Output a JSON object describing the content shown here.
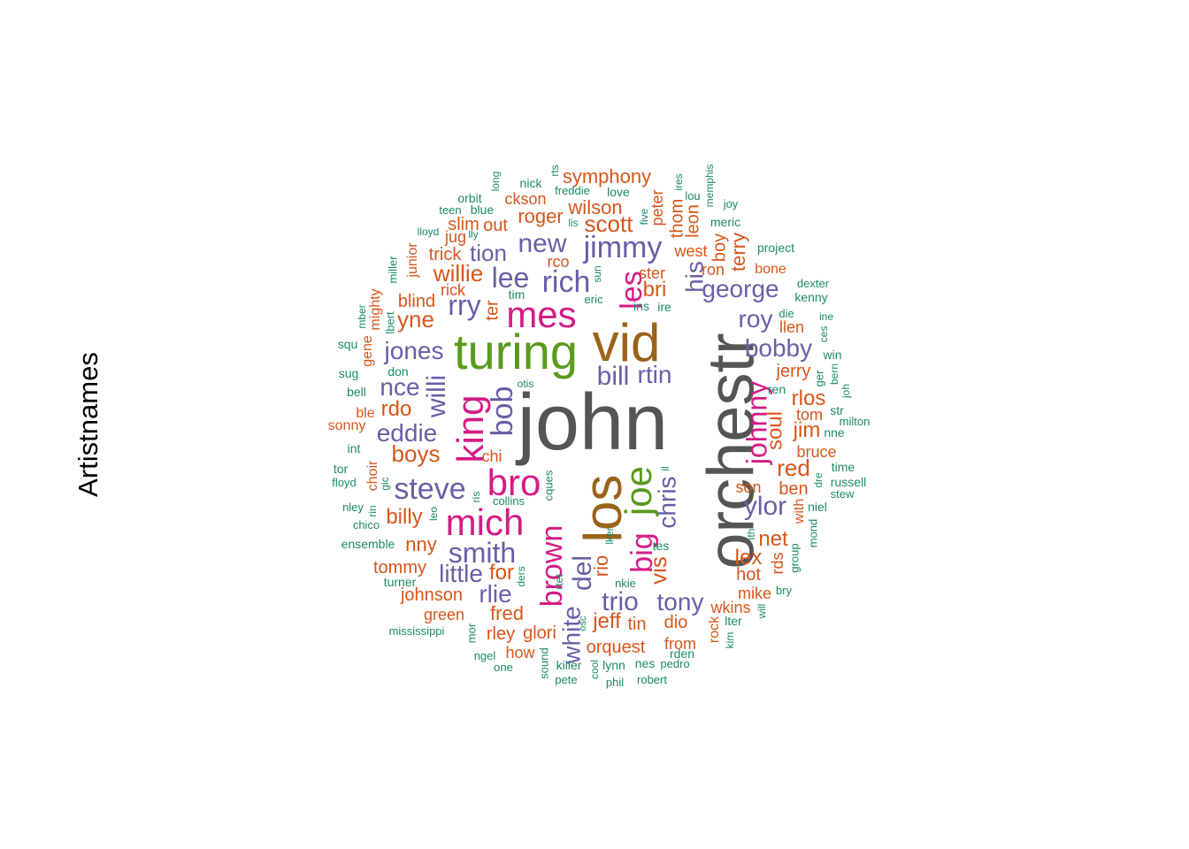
{
  "title": "Artistnames",
  "colors": {
    "gray": "#555555",
    "brown": "#9A6319",
    "green": "#5A9A1D",
    "magenta": "#D41C85",
    "purple": "#6A5EA6",
    "orange": "#D6561B",
    "teal": "#1B8A67"
  },
  "words": [
    {
      "text": "john",
      "color": "gray"
    },
    {
      "text": "orchestr",
      "color": "gray"
    },
    {
      "text": "vid",
      "color": "brown"
    },
    {
      "text": "turing",
      "color": "green"
    },
    {
      "text": "los",
      "color": "brown"
    },
    {
      "text": "joe",
      "color": "green"
    },
    {
      "text": "mes",
      "color": "magenta"
    },
    {
      "text": "bro",
      "color": "magenta"
    },
    {
      "text": "mich",
      "color": "magenta"
    },
    {
      "text": "king",
      "color": "magenta"
    },
    {
      "text": "les",
      "color": "magenta"
    },
    {
      "text": "johnny",
      "color": "magenta"
    },
    {
      "text": "brown",
      "color": "magenta"
    },
    {
      "text": "big",
      "color": "magenta"
    },
    {
      "text": "jimmy",
      "color": "purple"
    },
    {
      "text": "rich",
      "color": "purple"
    },
    {
      "text": "lee",
      "color": "purple"
    },
    {
      "text": "george",
      "color": "purple"
    },
    {
      "text": "his",
      "color": "purple"
    },
    {
      "text": "new",
      "color": "purple"
    },
    {
      "text": "tion",
      "color": "purple"
    },
    {
      "text": "rry",
      "color": "purple"
    },
    {
      "text": "steve",
      "color": "purple"
    },
    {
      "text": "eddie",
      "color": "purple"
    },
    {
      "text": "smith",
      "color": "purple"
    },
    {
      "text": "bob",
      "color": "purple"
    },
    {
      "text": "willi",
      "color": "purple"
    },
    {
      "text": "jones",
      "color": "purple"
    },
    {
      "text": "nce",
      "color": "purple"
    },
    {
      "text": "bill",
      "color": "purple"
    },
    {
      "text": "rtin",
      "color": "purple"
    },
    {
      "text": "roy",
      "color": "purple"
    },
    {
      "text": "bobby",
      "color": "purple"
    },
    {
      "text": "ylor",
      "color": "purple"
    },
    {
      "text": "chris",
      "color": "purple"
    },
    {
      "text": "del",
      "color": "purple"
    },
    {
      "text": "little",
      "color": "purple"
    },
    {
      "text": "rlie",
      "color": "purple"
    },
    {
      "text": "trio",
      "color": "purple"
    },
    {
      "text": "tony",
      "color": "purple"
    },
    {
      "text": "white",
      "color": "purple"
    },
    {
      "text": "scott",
      "color": "orange"
    },
    {
      "text": "wilson",
      "color": "orange"
    },
    {
      "text": "symphony",
      "color": "orange"
    },
    {
      "text": "roger",
      "color": "orange"
    },
    {
      "text": "ckson",
      "color": "orange"
    },
    {
      "text": "willie",
      "color": "orange"
    },
    {
      "text": "slim",
      "color": "orange"
    },
    {
      "text": "out",
      "color": "orange"
    },
    {
      "text": "jug",
      "color": "orange"
    },
    {
      "text": "trick",
      "color": "orange"
    },
    {
      "text": "rco",
      "color": "orange"
    },
    {
      "text": "blind",
      "color": "orange"
    },
    {
      "text": "rick",
      "color": "orange"
    },
    {
      "text": "yne",
      "color": "orange"
    },
    {
      "text": "ter",
      "color": "orange"
    },
    {
      "text": "rdo",
      "color": "orange"
    },
    {
      "text": "boys",
      "color": "orange"
    },
    {
      "text": "chi",
      "color": "orange"
    },
    {
      "text": "billy",
      "color": "orange"
    },
    {
      "text": "nny",
      "color": "orange"
    },
    {
      "text": "tommy",
      "color": "orange"
    },
    {
      "text": "johnson",
      "color": "orange"
    },
    {
      "text": "green",
      "color": "orange"
    },
    {
      "text": "for",
      "color": "orange"
    },
    {
      "text": "fred",
      "color": "orange"
    },
    {
      "text": "rley",
      "color": "orange"
    },
    {
      "text": "glori",
      "color": "orange"
    },
    {
      "text": "how",
      "color": "orange"
    },
    {
      "text": "jeff",
      "color": "orange"
    },
    {
      "text": "tin",
      "color": "orange"
    },
    {
      "text": "orquest",
      "color": "orange"
    },
    {
      "text": "rio",
      "color": "orange"
    },
    {
      "text": "vis",
      "color": "orange"
    },
    {
      "text": "dio",
      "color": "orange"
    },
    {
      "text": "from",
      "color": "orange"
    },
    {
      "text": "bri",
      "color": "orange"
    },
    {
      "text": "ster",
      "color": "orange"
    },
    {
      "text": "peter",
      "color": "orange"
    },
    {
      "text": "thom",
      "color": "orange"
    },
    {
      "text": "leon",
      "color": "orange"
    },
    {
      "text": "west",
      "color": "orange"
    },
    {
      "text": "ron",
      "color": "orange"
    },
    {
      "text": "boy",
      "color": "orange"
    },
    {
      "text": "terry",
      "color": "orange"
    },
    {
      "text": "bone",
      "color": "orange"
    },
    {
      "text": "llen",
      "color": "orange"
    },
    {
      "text": "jerry",
      "color": "orange"
    },
    {
      "text": "rlos",
      "color": "orange"
    },
    {
      "text": "tom",
      "color": "orange"
    },
    {
      "text": "jim",
      "color": "orange"
    },
    {
      "text": "soul",
      "color": "orange"
    },
    {
      "text": "bruce",
      "color": "orange"
    },
    {
      "text": "red",
      "color": "orange"
    },
    {
      "text": "ben",
      "color": "orange"
    },
    {
      "text": "son",
      "color": "orange"
    },
    {
      "text": "net",
      "color": "orange"
    },
    {
      "text": "lex",
      "color": "orange"
    },
    {
      "text": "hot",
      "color": "orange"
    },
    {
      "text": "rds",
      "color": "orange"
    },
    {
      "text": "mike",
      "color": "orange"
    },
    {
      "text": "wkins",
      "color": "orange"
    },
    {
      "text": "rock",
      "color": "orange"
    },
    {
      "text": "with",
      "color": "orange"
    },
    {
      "text": "junior",
      "color": "orange"
    },
    {
      "text": "mighty",
      "color": "orange"
    },
    {
      "text": "gene",
      "color": "orange"
    },
    {
      "text": "sonny",
      "color": "orange"
    },
    {
      "text": "ble",
      "color": "orange"
    },
    {
      "text": "choir",
      "color": "orange"
    },
    {
      "text": "nick",
      "color": "teal"
    },
    {
      "text": "rts",
      "color": "teal"
    },
    {
      "text": "long",
      "color": "teal"
    },
    {
      "text": "orbit",
      "color": "teal"
    },
    {
      "text": "freddie",
      "color": "teal"
    },
    {
      "text": "love",
      "color": "teal"
    },
    {
      "text": "teen",
      "color": "teal"
    },
    {
      "text": "blue",
      "color": "teal"
    },
    {
      "text": "lis",
      "color": "teal"
    },
    {
      "text": "five",
      "color": "teal"
    },
    {
      "text": "ires",
      "color": "teal"
    },
    {
      "text": "lou",
      "color": "teal"
    },
    {
      "text": "memphis",
      "color": "teal"
    },
    {
      "text": "joy",
      "color": "teal"
    },
    {
      "text": "meric",
      "color": "teal"
    },
    {
      "text": "lloyd",
      "color": "teal"
    },
    {
      "text": "lly",
      "color": "teal"
    },
    {
      "text": "project",
      "color": "teal"
    },
    {
      "text": "miller",
      "color": "teal"
    },
    {
      "text": "sun",
      "color": "teal"
    },
    {
      "text": "tim",
      "color": "teal"
    },
    {
      "text": "eric",
      "color": "teal"
    },
    {
      "text": "ins",
      "color": "teal"
    },
    {
      "text": "ire",
      "color": "teal"
    },
    {
      "text": "dexter",
      "color": "teal"
    },
    {
      "text": "kenny",
      "color": "teal"
    },
    {
      "text": "mber",
      "color": "teal"
    },
    {
      "text": "lbert",
      "color": "teal"
    },
    {
      "text": "die",
      "color": "teal"
    },
    {
      "text": "ine",
      "color": "teal"
    },
    {
      "text": "ces",
      "color": "teal"
    },
    {
      "text": "squ",
      "color": "teal"
    },
    {
      "text": "win",
      "color": "teal"
    },
    {
      "text": "sug",
      "color": "teal"
    },
    {
      "text": "don",
      "color": "teal"
    },
    {
      "text": "ger",
      "color": "teal"
    },
    {
      "text": "bern",
      "color": "teal"
    },
    {
      "text": "joh",
      "color": "teal"
    },
    {
      "text": "bell",
      "color": "teal"
    },
    {
      "text": "otis",
      "color": "teal"
    },
    {
      "text": "ren",
      "color": "teal"
    },
    {
      "text": "str",
      "color": "teal"
    },
    {
      "text": "milton",
      "color": "teal"
    },
    {
      "text": "nne",
      "color": "teal"
    },
    {
      "text": "int",
      "color": "teal"
    },
    {
      "text": "tor",
      "color": "teal"
    },
    {
      "text": "floyd",
      "color": "teal"
    },
    {
      "text": "gic",
      "color": "teal"
    },
    {
      "text": "il",
      "color": "teal"
    },
    {
      "text": "time",
      "color": "teal"
    },
    {
      "text": "russell",
      "color": "teal"
    },
    {
      "text": "stew",
      "color": "teal"
    },
    {
      "text": "dre",
      "color": "teal"
    },
    {
      "text": "niel",
      "color": "teal"
    },
    {
      "text": "nley",
      "color": "teal"
    },
    {
      "text": "rin",
      "color": "teal"
    },
    {
      "text": "chico",
      "color": "teal"
    },
    {
      "text": "leo",
      "color": "teal"
    },
    {
      "text": "ris",
      "color": "teal"
    },
    {
      "text": "collins",
      "color": "teal"
    },
    {
      "text": "cques",
      "color": "teal"
    },
    {
      "text": "ith",
      "color": "teal"
    },
    {
      "text": "mond",
      "color": "teal"
    },
    {
      "text": "ensemble",
      "color": "teal"
    },
    {
      "text": "lker",
      "color": "teal"
    },
    {
      "text": "tes",
      "color": "teal"
    },
    {
      "text": "group",
      "color": "teal"
    },
    {
      "text": "turner",
      "color": "teal"
    },
    {
      "text": "ders",
      "color": "teal"
    },
    {
      "text": "rtet",
      "color": "teal"
    },
    {
      "text": "nkie",
      "color": "teal"
    },
    {
      "text": "bry",
      "color": "teal"
    },
    {
      "text": "will",
      "color": "teal"
    },
    {
      "text": "mississippi",
      "color": "teal"
    },
    {
      "text": "mor",
      "color": "teal"
    },
    {
      "text": "osc",
      "color": "teal"
    },
    {
      "text": "lter",
      "color": "teal"
    },
    {
      "text": "kim",
      "color": "teal"
    },
    {
      "text": "ngel",
      "color": "teal"
    },
    {
      "text": "sound",
      "color": "teal"
    },
    {
      "text": "killer",
      "color": "teal"
    },
    {
      "text": "cool",
      "color": "teal"
    },
    {
      "text": "lynn",
      "color": "teal"
    },
    {
      "text": "nes",
      "color": "teal"
    },
    {
      "text": "pedro",
      "color": "teal"
    },
    {
      "text": "rden",
      "color": "teal"
    },
    {
      "text": "one",
      "color": "teal"
    },
    {
      "text": "pete",
      "color": "teal"
    },
    {
      "text": "phil",
      "color": "teal"
    },
    {
      "text": "robert",
      "color": "teal"
    }
  ]
}
